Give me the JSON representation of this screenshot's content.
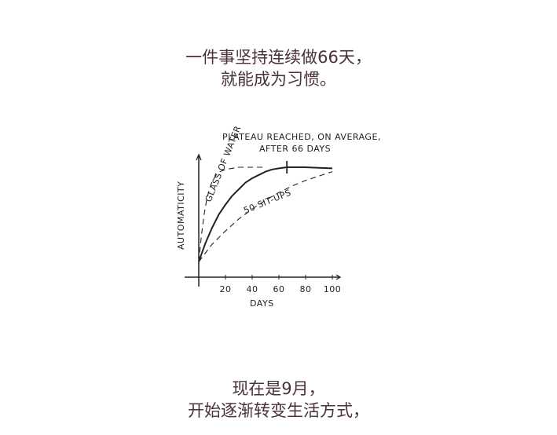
{
  "header": {
    "line1": "一件事坚持连续做66天，",
    "line2": "就能成为习惯。"
  },
  "footer": {
    "line1": "现在是9月，",
    "line2": "开始逐渐转变生活方式，"
  },
  "colors": {
    "text": "#4a3236",
    "ink": "#222222"
  },
  "chart_data": {
    "type": "line",
    "title": "PLATEAU REACHED, ON AVERAGE, AFTER 66 DAYS",
    "title_line1": "PLATEAU REACHED, ON AVERAGE,",
    "title_line2": "AFTER 66 DAYS",
    "xlabel": "DAYS",
    "ylabel": "AUTOMATICITY",
    "xlim": [
      0,
      100
    ],
    "ylim": [
      0,
      1
    ],
    "xticks": [
      20,
      40,
      60,
      80,
      100
    ],
    "xtick_labels": [
      "20",
      "40",
      "60",
      "80",
      "100"
    ],
    "grid": false,
    "plateau_marker_day": 66,
    "series": [
      {
        "style": "solid",
        "x": [
          0,
          5,
          10,
          15,
          20,
          25,
          30,
          35,
          40,
          45,
          50,
          55,
          60,
          66,
          70,
          80,
          90,
          100
        ],
        "y": [
          0.14,
          0.31,
          0.45,
          0.57,
          0.66,
          0.74,
          0.8,
          0.86,
          0.9,
          0.93,
          0.96,
          0.98,
          0.99,
          1.0,
          1.0,
          1.0,
          0.995,
          0.99
        ]
      },
      {
        "name": "GLASS OF WATER",
        "style": "dashed",
        "x": [
          0,
          2,
          4,
          6,
          8,
          10,
          13,
          16,
          20,
          25,
          30,
          40,
          50
        ],
        "y": [
          0.14,
          0.38,
          0.57,
          0.71,
          0.8,
          0.87,
          0.93,
          0.96,
          0.98,
          0.99,
          1.0,
          1.0,
          1.0
        ]
      },
      {
        "name": "50 SIT-UPS",
        "style": "dashed",
        "x": [
          0,
          10,
          20,
          30,
          40,
          50,
          60,
          70,
          80,
          90,
          100
        ],
        "y": [
          0.14,
          0.3,
          0.42,
          0.53,
          0.62,
          0.7,
          0.77,
          0.83,
          0.88,
          0.92,
          0.96
        ]
      }
    ]
  }
}
